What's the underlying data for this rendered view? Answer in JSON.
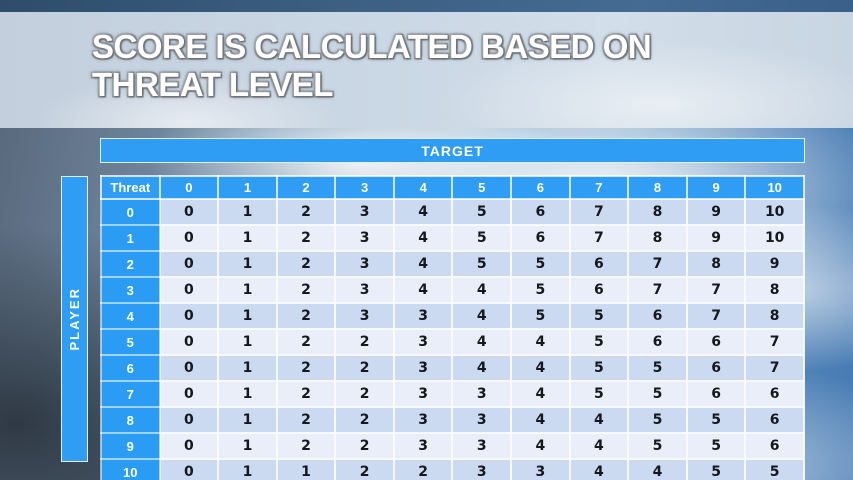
{
  "slide": {
    "title": "SCORE IS CALCULATED BASED ON THREAT LEVEL"
  },
  "colors": {
    "accent_blue": "#2f9df3",
    "row_label_blue": "#2b9cf4",
    "row_even_fill": "#cbd9f1",
    "row_odd_fill": "#e9eef9",
    "grid_line": "#f8fbfe",
    "title_text": "#ffffff"
  },
  "chart_data": {
    "type": "table",
    "title": "Score matrix: score by player threat level (rows) vs target level (columns)",
    "column_group_label": "TARGET",
    "row_group_label": "PLAYER",
    "corner_label": "Threat",
    "columns": [
      0,
      1,
      2,
      3,
      4,
      5,
      6,
      7,
      8,
      9,
      10
    ],
    "rows": [
      {
        "threat": 0,
        "scores": [
          0,
          1,
          2,
          3,
          4,
          5,
          6,
          7,
          8,
          9,
          10
        ]
      },
      {
        "threat": 1,
        "scores": [
          0,
          1,
          2,
          3,
          4,
          5,
          6,
          7,
          8,
          9,
          10
        ]
      },
      {
        "threat": 2,
        "scores": [
          0,
          1,
          2,
          3,
          4,
          5,
          5,
          6,
          7,
          8,
          9
        ]
      },
      {
        "threat": 3,
        "scores": [
          0,
          1,
          2,
          3,
          4,
          4,
          5,
          6,
          7,
          7,
          8
        ]
      },
      {
        "threat": 4,
        "scores": [
          0,
          1,
          2,
          3,
          3,
          4,
          5,
          5,
          6,
          7,
          8
        ]
      },
      {
        "threat": 5,
        "scores": [
          0,
          1,
          2,
          2,
          3,
          4,
          4,
          5,
          6,
          6,
          7
        ]
      },
      {
        "threat": 6,
        "scores": [
          0,
          1,
          2,
          2,
          3,
          4,
          4,
          5,
          5,
          6,
          7
        ]
      },
      {
        "threat": 7,
        "scores": [
          0,
          1,
          2,
          2,
          3,
          3,
          4,
          5,
          5,
          6,
          6
        ]
      },
      {
        "threat": 8,
        "scores": [
          0,
          1,
          2,
          2,
          3,
          3,
          4,
          4,
          5,
          5,
          6
        ]
      },
      {
        "threat": 9,
        "scores": [
          0,
          1,
          2,
          2,
          3,
          3,
          4,
          4,
          5,
          5,
          6
        ]
      },
      {
        "threat": 10,
        "scores": [
          0,
          1,
          1,
          2,
          2,
          3,
          3,
          4,
          4,
          5,
          5
        ]
      }
    ]
  }
}
